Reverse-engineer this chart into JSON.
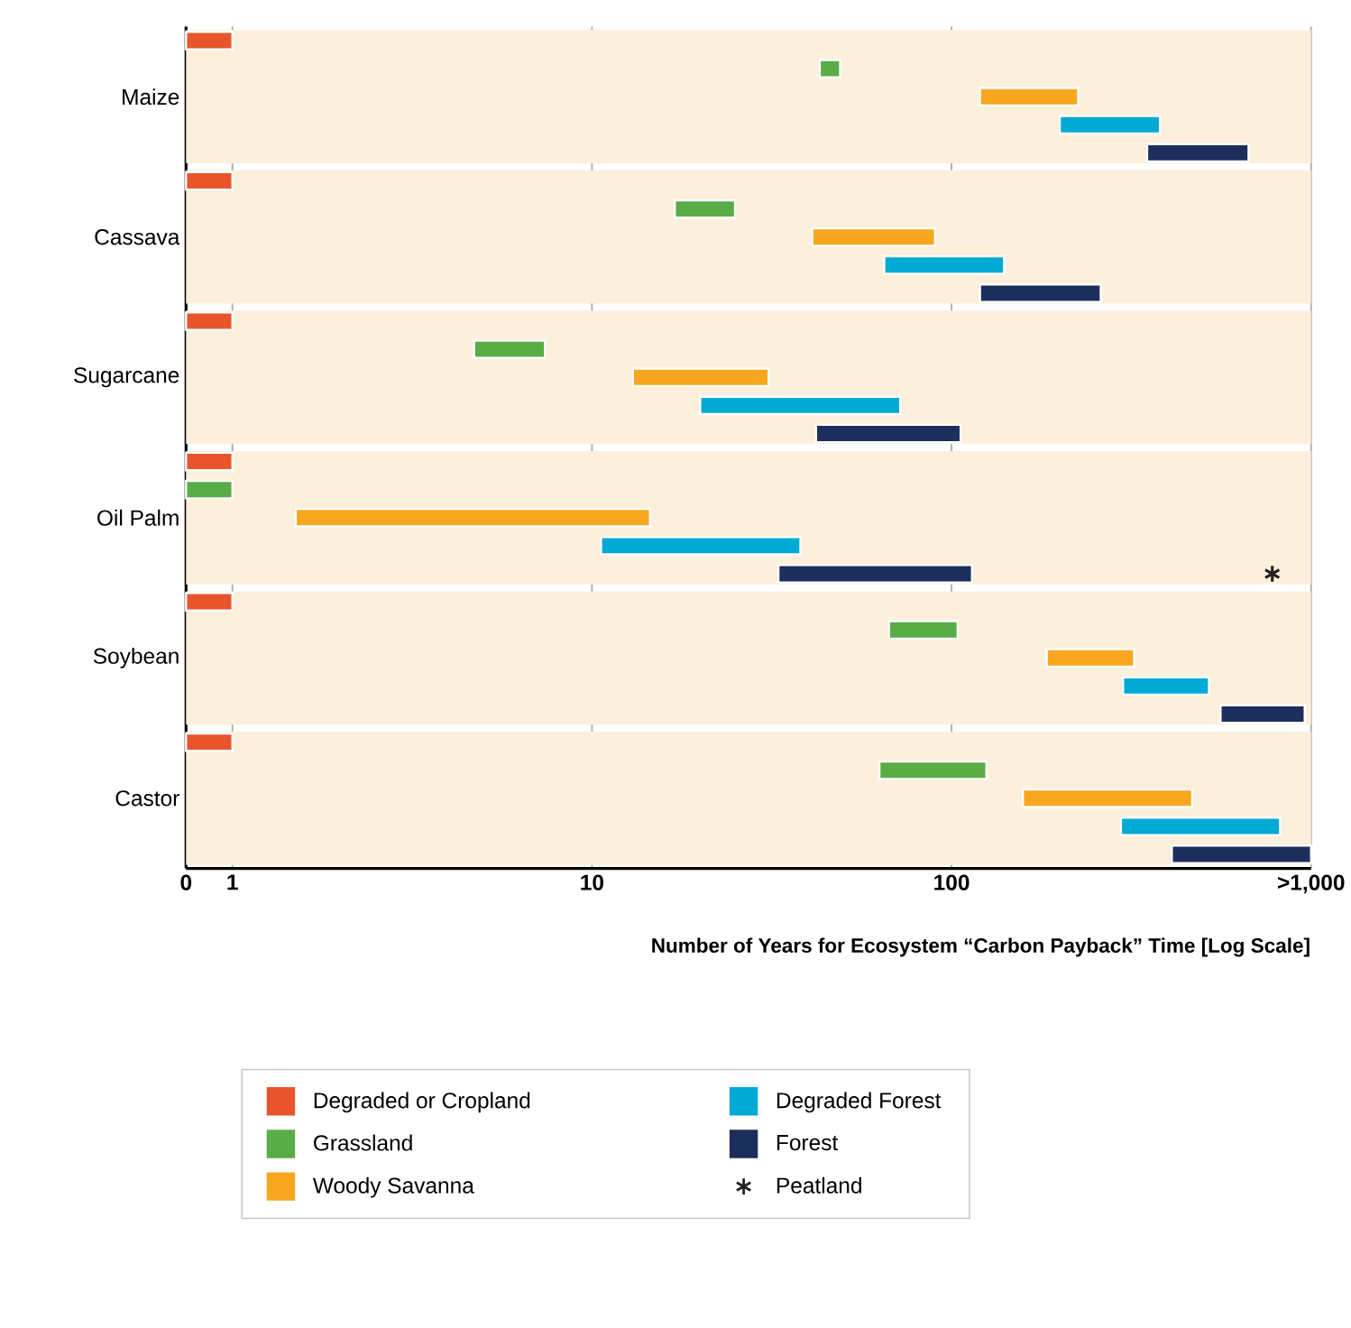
{
  "chart_data": {
    "type": "bar",
    "orientation": "horizontal",
    "xlabel": "Number of Years for Ecosystem “Carbon Payback” Time [Log Scale]",
    "categories": [
      "Maize",
      "Cassava",
      "Sugarcane",
      "Oil Palm",
      "Soybean",
      "Castor"
    ],
    "log": "x",
    "xlim": [
      0,
      1000
    ],
    "xticks": [
      0,
      1,
      10,
      100,
      {
        "value": 1000,
        "label": ">1,000"
      }
    ],
    "grid": "x",
    "legend": "bottom",
    "series": [
      {
        "name": "Degraded or Cropland",
        "color": "#e8552b",
        "base": [
          0,
          0,
          0,
          0,
          0,
          0
        ],
        "values": [
          1,
          1,
          1,
          1,
          1,
          1
        ]
      },
      {
        "name": "Grassland",
        "color": "#5aac46",
        "base": [
          43,
          17,
          4.7,
          0,
          67,
          63
        ],
        "values": [
          6,
          8,
          2.7,
          1,
          37,
          62
        ]
      },
      {
        "name": "Woody Savanna",
        "color": "#f7a71f",
        "base": [
          120,
          41,
          13,
          1.5,
          184,
          158
        ],
        "values": [
          105,
          49,
          18,
          13,
          138,
          309
        ]
      },
      {
        "name": "Degraded Forest",
        "color": "#00aad4",
        "base": [
          200,
          65,
          20,
          10.6,
          300,
          296
        ],
        "values": [
          180,
          75,
          52,
          27.4,
          220,
          524
        ]
      },
      {
        "name": "Forest",
        "color": "#1c2f5c",
        "base": [
          350,
          120,
          42,
          33,
          560,
          410
        ],
        "values": [
          320,
          140,
          64,
          81,
          400,
          590
        ]
      },
      {
        "name": "Peatland",
        "type": "scatter",
        "marker": "cross",
        "color": "#222222",
        "values": [
          null,
          null,
          null,
          780,
          null,
          null
        ]
      }
    ]
  }
}
